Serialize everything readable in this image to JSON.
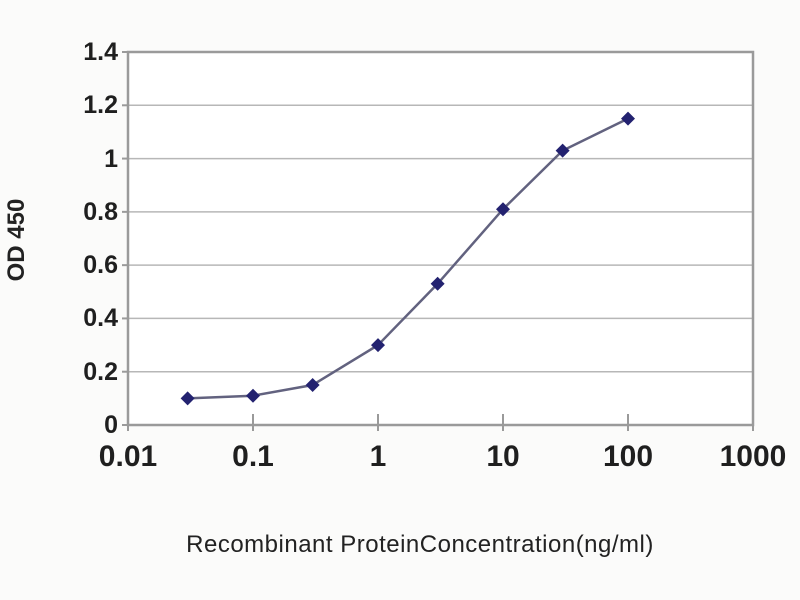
{
  "figure": {
    "background_color": "#fbfbfa",
    "plot_background_color": "#ffffff",
    "border_color": "#9a9a9a",
    "grid_color": "#b7b7b7",
    "line_color": "#62627f",
    "marker_color": "#232270",
    "text_color": "#1f1f1f"
  },
  "chart_data": {
    "type": "line",
    "title": "",
    "xlabel": "Recombinant ProteinConcentration(ng/ml)",
    "ylabel": "OD 450",
    "x_scale": "log",
    "xlim": [
      0.01,
      1000
    ],
    "ylim": [
      0,
      1.4
    ],
    "x_ticks": [
      0.01,
      0.1,
      1,
      10,
      100,
      1000
    ],
    "x_tick_labels": [
      "0.01",
      "0.1",
      "1",
      "10",
      "100",
      "1000"
    ],
    "y_ticks": [
      0,
      0.2,
      0.4,
      0.6,
      0.8,
      1,
      1.2,
      1.4
    ],
    "y_tick_labels": [
      "0",
      "0.2",
      "0.4",
      "0.6",
      "0.8",
      "1",
      "1.2",
      "1.4"
    ],
    "grid": "horizontal",
    "legend": "none",
    "marker": "diamond",
    "series": [
      {
        "name": "OD 450",
        "x": [
          0.03,
          0.1,
          0.3,
          1,
          3,
          10,
          30,
          100
        ],
        "y": [
          0.1,
          0.11,
          0.15,
          0.3,
          0.53,
          0.81,
          1.03,
          1.15
        ]
      }
    ]
  }
}
